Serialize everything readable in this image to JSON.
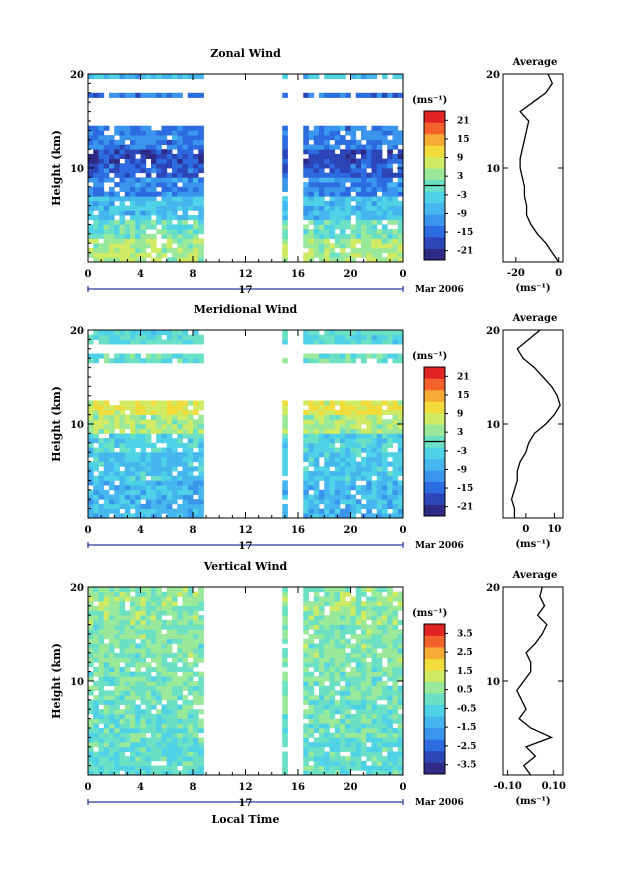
{
  "chart_data": [
    {
      "type": "heatmap",
      "title": "Zonal Wind",
      "ylabel": "Height (km)",
      "xlabel": "",
      "xlim": [
        0,
        24
      ],
      "ylim": [
        0,
        20
      ],
      "x_ticks": [
        "0",
        "4",
        "8",
        "12",
        "16",
        "20",
        "0"
      ],
      "y_ticks": [
        "10",
        "20"
      ],
      "date_label": "17",
      "month_label": "Mar 2006",
      "colorbar": {
        "unit": "(ms⁻¹)",
        "range": [
          -24,
          24
        ],
        "ticks": [
          "21",
          "15",
          "9",
          "3",
          "-3",
          "-9",
          "-15",
          "-21"
        ]
      },
      "data_gaps": [
        [
          8.8,
          14.8
        ],
        [
          15.2,
          16.4
        ]
      ],
      "layers": [
        {
          "z": [
            19.5,
            20
          ],
          "v": -6
        },
        {
          "z": [
            17.5,
            18.2
          ],
          "v": -14
        },
        {
          "z": [
            14.5,
            17.5
          ],
          "v": null
        },
        {
          "z": [
            12,
            14.5
          ],
          "v": -13
        },
        {
          "z": [
            10.5,
            12
          ],
          "v": -18
        },
        {
          "z": [
            9,
            10.5
          ],
          "v": -16
        },
        {
          "z": [
            7,
            9
          ],
          "v": -12
        },
        {
          "z": [
            4.5,
            7
          ],
          "v": -6
        },
        {
          "z": [
            2.5,
            4.5
          ],
          "v": 0
        },
        {
          "z": [
            0,
            2.5
          ],
          "v": 5
        }
      ],
      "profile": {
        "title": "Average",
        "xlabel": "(ms⁻¹)",
        "x_ticks": [
          "-20",
          "0"
        ],
        "xlim": [
          -26,
          2
        ],
        "z": [
          0,
          1,
          2,
          3,
          4,
          5,
          6,
          7,
          8,
          9,
          10,
          11,
          12,
          13,
          14,
          15,
          16,
          17,
          18,
          19,
          20
        ],
        "values": [
          0,
          -3,
          -6,
          -10,
          -13,
          -15,
          -15,
          -16,
          -16,
          -17,
          -18,
          -18,
          -17,
          -16,
          -15,
          -14,
          -18,
          -12,
          -6,
          -3,
          -5
        ]
      }
    },
    {
      "type": "heatmap",
      "title": "Meridional Wind",
      "ylabel": "Height (km)",
      "xlabel": "",
      "xlim": [
        0,
        24
      ],
      "ylim": [
        0,
        20
      ],
      "x_ticks": [
        "0",
        "4",
        "8",
        "12",
        "16",
        "20",
        "0"
      ],
      "y_ticks": [
        "10",
        "20"
      ],
      "date_label": "17",
      "month_label": "Mar 2006",
      "colorbar": {
        "unit": "(ms⁻¹)",
        "range": [
          -24,
          24
        ],
        "ticks": [
          "21",
          "15",
          "9",
          "3",
          "-3",
          "-9",
          "-15",
          "-21"
        ]
      },
      "data_gaps": [
        [
          8.8,
          14.8
        ],
        [
          15.2,
          16.4
        ]
      ],
      "layers": [
        {
          "z": [
            18.5,
            20
          ],
          "v": -2
        },
        {
          "z": [
            16.5,
            17.5
          ],
          "v": 0
        },
        {
          "z": [
            12.5,
            16.5
          ],
          "v": null
        },
        {
          "z": [
            11,
            12.5
          ],
          "v": 9
        },
        {
          "z": [
            9,
            11
          ],
          "v": 5
        },
        {
          "z": [
            7,
            9
          ],
          "v": -3
        },
        {
          "z": [
            4,
            7
          ],
          "v": -5
        },
        {
          "z": [
            0,
            4
          ],
          "v": -7
        }
      ],
      "profile": {
        "title": "Average",
        "xlabel": "(ms⁻¹)",
        "x_ticks": [
          "0",
          "10"
        ],
        "xlim": [
          -8,
          13
        ],
        "z": [
          0,
          1,
          2,
          3,
          4,
          5,
          6,
          7,
          8,
          9,
          10,
          11,
          12,
          13,
          14,
          15,
          16,
          17,
          18,
          19,
          20
        ],
        "values": [
          -4,
          -4,
          -5,
          -4,
          -3,
          -3,
          -2,
          0,
          1,
          3,
          7,
          10,
          12,
          11,
          9,
          6,
          3,
          -1,
          -3,
          1,
          5
        ]
      }
    },
    {
      "type": "heatmap",
      "title": "Vertical Wind",
      "ylabel": "Height (km)",
      "xlabel": "Local Time",
      "xlim": [
        0,
        24
      ],
      "ylim": [
        0,
        20
      ],
      "x_ticks": [
        "0",
        "4",
        "8",
        "12",
        "16",
        "20",
        "0"
      ],
      "y_ticks": [
        "10",
        "20"
      ],
      "date_label": "17",
      "month_label": "Mar 2006",
      "colorbar": {
        "unit": "(ms⁻¹)",
        "range": [
          -4,
          4
        ],
        "ticks": [
          "3.5",
          "2.5",
          "1.5",
          "0.5",
          "-0.5",
          "-1.5",
          "-2.5",
          "-3.5"
        ]
      },
      "data_gaps": [
        [
          8.8,
          15.0
        ],
        [
          15.3,
          16.4
        ]
      ],
      "layers": [
        {
          "z": [
            16,
            20
          ],
          "v": 0.5
        },
        {
          "z": [
            12,
            16
          ],
          "v": 0.3
        },
        {
          "z": [
            8,
            12
          ],
          "v": 0.2
        },
        {
          "z": [
            4,
            8
          ],
          "v": 0
        },
        {
          "z": [
            0,
            4
          ],
          "v": -0.2
        }
      ],
      "profile": {
        "title": "Average",
        "xlabel": "(ms⁻¹)",
        "x_ticks": [
          "-0.10",
          "0.10"
        ],
        "xlim": [
          -0.12,
          0.14
        ],
        "z": [
          0,
          1,
          2,
          3,
          4,
          5,
          6,
          7,
          8,
          9,
          10,
          11,
          12,
          13,
          14,
          15,
          16,
          17,
          18,
          19,
          20
        ],
        "values": [
          0.0,
          -0.03,
          0.02,
          -0.02,
          0.09,
          0.0,
          -0.05,
          -0.02,
          -0.04,
          -0.06,
          -0.03,
          0.0,
          0.0,
          -0.02,
          0.02,
          0.05,
          0.07,
          0.03,
          0.06,
          0.04,
          0.05
        ]
      }
    }
  ]
}
